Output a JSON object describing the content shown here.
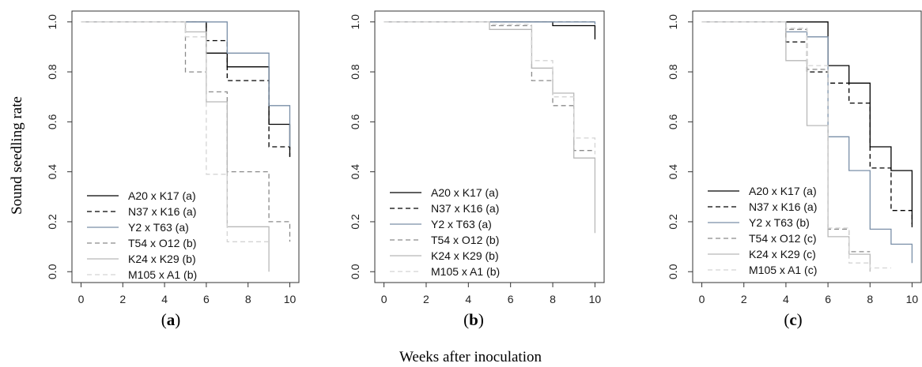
{
  "figure": {
    "ylabel": "Sound seedling rate",
    "xlabel": "Weeks after inoculation"
  },
  "chart_data": [
    {
      "type": "line",
      "step": true,
      "panel_label": "(a)",
      "xlim": [
        0,
        10
      ],
      "ylim": [
        0,
        1
      ],
      "xticks": [
        "0",
        "2",
        "4",
        "6",
        "8",
        "10"
      ],
      "yticks": [
        "0.0",
        "0.2",
        "0.4",
        "0.6",
        "0.8",
        "1.0"
      ],
      "legend_position": "bottom-left",
      "series": [
        {
          "name": "A20 x K17 (a)",
          "color": "#000000",
          "dash": "solid",
          "x": [
            0,
            6,
            7,
            9,
            10,
            10
          ],
          "y": [
            1.0,
            0.875,
            0.82,
            0.59,
            0.46,
            0.46
          ]
        },
        {
          "name": "N37 x K16 (a)",
          "color": "#000000",
          "dash": "dashed",
          "x": [
            0,
            6,
            7,
            9,
            10,
            10
          ],
          "y": [
            1.0,
            0.925,
            0.765,
            0.5,
            0.46,
            0.46
          ]
        },
        {
          "name": "Y2 x T63 (a)",
          "color": "#7a8fa8",
          "dash": "solid",
          "x": [
            0,
            7,
            9,
            10,
            10
          ],
          "y": [
            1.0,
            0.875,
            0.665,
            0.5,
            0.5
          ]
        },
        {
          "name": "T54 x O12 (b)",
          "color": "#8a8a8a",
          "dash": "dashed",
          "x": [
            0,
            5,
            6,
            7,
            9,
            10,
            10
          ],
          "y": [
            1.0,
            0.8,
            0.72,
            0.4,
            0.2,
            0.12,
            0.12
          ]
        },
        {
          "name": "K24 x K29 (b)",
          "color": "#b8b8b8",
          "dash": "solid",
          "x": [
            0,
            5,
            6,
            7,
            9,
            9
          ],
          "y": [
            1.0,
            0.96,
            0.68,
            0.18,
            0.0,
            0.0
          ]
        },
        {
          "name": "M105 x A1 (b)",
          "color": "#d4d4d4",
          "dash": "dashed",
          "x": [
            0,
            5,
            6,
            7,
            9,
            9
          ],
          "y": [
            1.0,
            0.94,
            0.39,
            0.12,
            0.12,
            0.12
          ]
        }
      ]
    },
    {
      "type": "line",
      "step": true,
      "panel_label": "(b)",
      "xlim": [
        0,
        10
      ],
      "ylim": [
        0,
        1
      ],
      "xticks": [
        "0",
        "2",
        "4",
        "6",
        "8",
        "10"
      ],
      "yticks": [
        "0.0",
        "0.2",
        "0.4",
        "0.6",
        "0.8",
        "1.0"
      ],
      "legend_position": "bottom-left",
      "series": [
        {
          "name": "A20 x K17 (a)",
          "color": "#000000",
          "dash": "solid",
          "x": [
            0,
            8,
            10,
            10
          ],
          "y": [
            1.0,
            0.985,
            0.93,
            0.93
          ]
        },
        {
          "name": "N37 x K16 (a)",
          "color": "#000000",
          "dash": "dashed",
          "x": [
            0,
            10,
            10
          ],
          "y": [
            1.0,
            1.0,
            1.0
          ]
        },
        {
          "name": "Y2 x T63 (a)",
          "color": "#7a8fa8",
          "dash": "solid",
          "x": [
            0,
            10,
            10
          ],
          "y": [
            1.0,
            0.99,
            0.99
          ]
        },
        {
          "name": "T54 x O12 (b)",
          "color": "#8a8a8a",
          "dash": "dashed",
          "x": [
            0,
            5,
            7,
            8,
            9,
            10,
            10
          ],
          "y": [
            1.0,
            0.985,
            0.765,
            0.665,
            0.485,
            0.485,
            0.485
          ]
        },
        {
          "name": "K24 x K29 (b)",
          "color": "#b8b8b8",
          "dash": "solid",
          "x": [
            0,
            5,
            7,
            8,
            9,
            10,
            10
          ],
          "y": [
            1.0,
            0.97,
            0.815,
            0.715,
            0.455,
            0.155,
            0.155
          ]
        },
        {
          "name": "M105 x A1 (b)",
          "color": "#d4d4d4",
          "dash": "dashed",
          "x": [
            0,
            5,
            7,
            8,
            9,
            10,
            10
          ],
          "y": [
            1.0,
            0.99,
            0.845,
            0.7,
            0.535,
            0.47,
            0.47
          ]
        }
      ]
    },
    {
      "type": "line",
      "step": true,
      "panel_label": "(c)",
      "xlim": [
        0,
        10
      ],
      "ylim": [
        0,
        1
      ],
      "xticks": [
        "0",
        "2",
        "4",
        "6",
        "8",
        "10"
      ],
      "yticks": [
        "0.0",
        "0.2",
        "0.4",
        "0.6",
        "0.8",
        "1.0"
      ],
      "legend_position": "bottom-left",
      "series": [
        {
          "name": "A20 x K17 (a)",
          "color": "#000000",
          "dash": "solid",
          "x": [
            0,
            6,
            7,
            8,
            9,
            10,
            10
          ],
          "y": [
            1.0,
            0.825,
            0.755,
            0.5,
            0.405,
            0.19,
            0.19
          ]
        },
        {
          "name": "N37 x K16 (a)",
          "color": "#000000",
          "dash": "dashed",
          "x": [
            0,
            4,
            5,
            6,
            7,
            8,
            9,
            10,
            10
          ],
          "y": [
            1.0,
            0.92,
            0.8,
            0.755,
            0.675,
            0.415,
            0.245,
            0.17,
            0.17
          ]
        },
        {
          "name": "Y2 x T63 (b)",
          "color": "#7a8fa8",
          "dash": "solid",
          "x": [
            0,
            4,
            5,
            6,
            7,
            8,
            9,
            10,
            10
          ],
          "y": [
            1.0,
            0.96,
            0.94,
            0.54,
            0.405,
            0.17,
            0.11,
            0.035,
            0.035
          ]
        },
        {
          "name": "T54 x O12 (c)",
          "color": "#8a8a8a",
          "dash": "dashed",
          "x": [
            0,
            4,
            5,
            6,
            7,
            8,
            8
          ],
          "y": [
            1.0,
            0.97,
            0.81,
            0.17,
            0.08,
            0.08,
            0.08
          ]
        },
        {
          "name": "K24 x K29 (c)",
          "color": "#b8b8b8",
          "dash": "solid",
          "x": [
            0,
            4,
            5,
            6,
            7,
            8,
            8
          ],
          "y": [
            1.0,
            0.845,
            0.585,
            0.14,
            0.07,
            0.0,
            0.0
          ]
        },
        {
          "name": "M105 x A1 (c)",
          "color": "#d4d4d4",
          "dash": "dashed",
          "x": [
            0,
            4,
            5,
            6,
            7,
            8,
            9,
            9
          ],
          "y": [
            1.0,
            0.975,
            0.825,
            0.175,
            0.035,
            0.015,
            0.015,
            0.015
          ]
        }
      ]
    }
  ]
}
